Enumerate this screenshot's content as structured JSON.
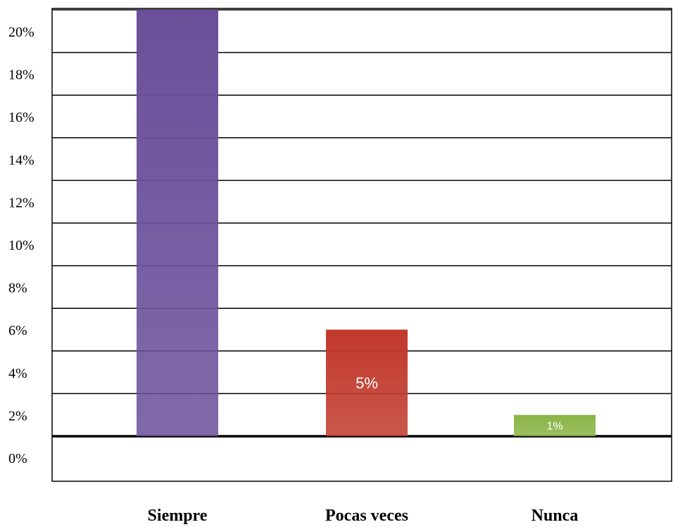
{
  "chart_data": {
    "type": "bar",
    "title": "",
    "xlabel": "",
    "ylabel": "",
    "ylim": [
      0,
      20
    ],
    "y_ticks": [
      "0%",
      "2%",
      "4%",
      "6%",
      "8%",
      "10%",
      "12%",
      "14%",
      "16%",
      "18%",
      "20%"
    ],
    "categories": [
      "Siempre",
      "Pocas veces",
      "Nunca"
    ],
    "values": [
      20,
      5,
      1
    ],
    "data_labels": [
      "",
      "5%",
      "1%"
    ],
    "colors": [
      "#6b4f9a",
      "#c0392b",
      "#8ab446"
    ],
    "grid": true,
    "legend": "none"
  }
}
